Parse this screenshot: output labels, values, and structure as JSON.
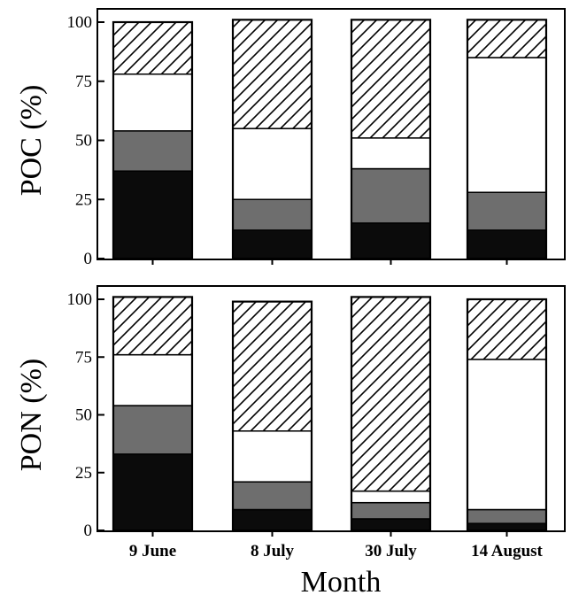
{
  "chart_data": [
    {
      "type": "bar",
      "stacked": true,
      "ylabel": "POC (%)",
      "ylim": [
        0,
        100
      ],
      "yticks": [
        0,
        25,
        50,
        75,
        100
      ],
      "categories": [
        "9 June",
        "8 July",
        "30 July",
        "14 August"
      ],
      "series": [
        {
          "fill": "black",
          "values": [
            37,
            12,
            15,
            12
          ]
        },
        {
          "fill": "dark-grey",
          "values": [
            17,
            13,
            23,
            16
          ]
        },
        {
          "fill": "white",
          "values": [
            24,
            30,
            13,
            57
          ]
        },
        {
          "fill": "hatched",
          "values": [
            22,
            46,
            50,
            16
          ]
        }
      ]
    },
    {
      "type": "bar",
      "stacked": true,
      "ylabel": "PON (%)",
      "ylim": [
        0,
        100
      ],
      "yticks": [
        0,
        25,
        50,
        75,
        100
      ],
      "categories": [
        "9 June",
        "8 July",
        "30 July",
        "14 August"
      ],
      "series": [
        {
          "fill": "black",
          "values": [
            33,
            9,
            5,
            3
          ]
        },
        {
          "fill": "dark-grey",
          "values": [
            21,
            12,
            7,
            6
          ]
        },
        {
          "fill": "white",
          "values": [
            22,
            22,
            5,
            65
          ]
        },
        {
          "fill": "hatched",
          "values": [
            25,
            56,
            84,
            26
          ]
        }
      ]
    }
  ],
  "xlabel": "Month",
  "colors": {
    "black": "#0b0b0b",
    "dark-grey": "#6e6e6e",
    "white": "#ffffff",
    "hatched": "#ffffff"
  }
}
